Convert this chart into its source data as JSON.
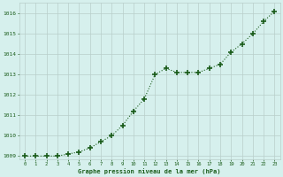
{
  "x": [
    0,
    1,
    2,
    3,
    4,
    5,
    6,
    7,
    8,
    9,
    10,
    11,
    12,
    13,
    14,
    15,
    16,
    17,
    18,
    19,
    20,
    21,
    22,
    23
  ],
  "y": [
    1009.0,
    1009.0,
    1009.0,
    1009.0,
    1009.1,
    1009.2,
    1009.4,
    1009.7,
    1010.0,
    1010.5,
    1011.2,
    1011.8,
    1013.0,
    1013.3,
    1013.1,
    1013.1,
    1013.1,
    1013.3,
    1013.5,
    1014.1,
    1014.5,
    1015.0,
    1015.6,
    1016.1
  ],
  "line_color": "#1a5c1a",
  "marker_color": "#1a5c1a",
  "bg_color": "#d6f0ed",
  "grid_color": "#b8ceca",
  "xlabel": "Graphe pression niveau de la mer (hPa)",
  "xlabel_color": "#1a5c1a",
  "tick_color": "#1a5c1a",
  "ylim_min": 1008.85,
  "ylim_max": 1016.5,
  "yticks": [
    1009,
    1010,
    1011,
    1012,
    1013,
    1014,
    1015,
    1016
  ],
  "xticks": [
    0,
    1,
    2,
    3,
    4,
    5,
    6,
    7,
    8,
    9,
    10,
    11,
    12,
    13,
    14,
    15,
    16,
    17,
    18,
    19,
    20,
    21,
    22,
    23
  ],
  "marker_size": 4.0,
  "line_width": 0.8
}
